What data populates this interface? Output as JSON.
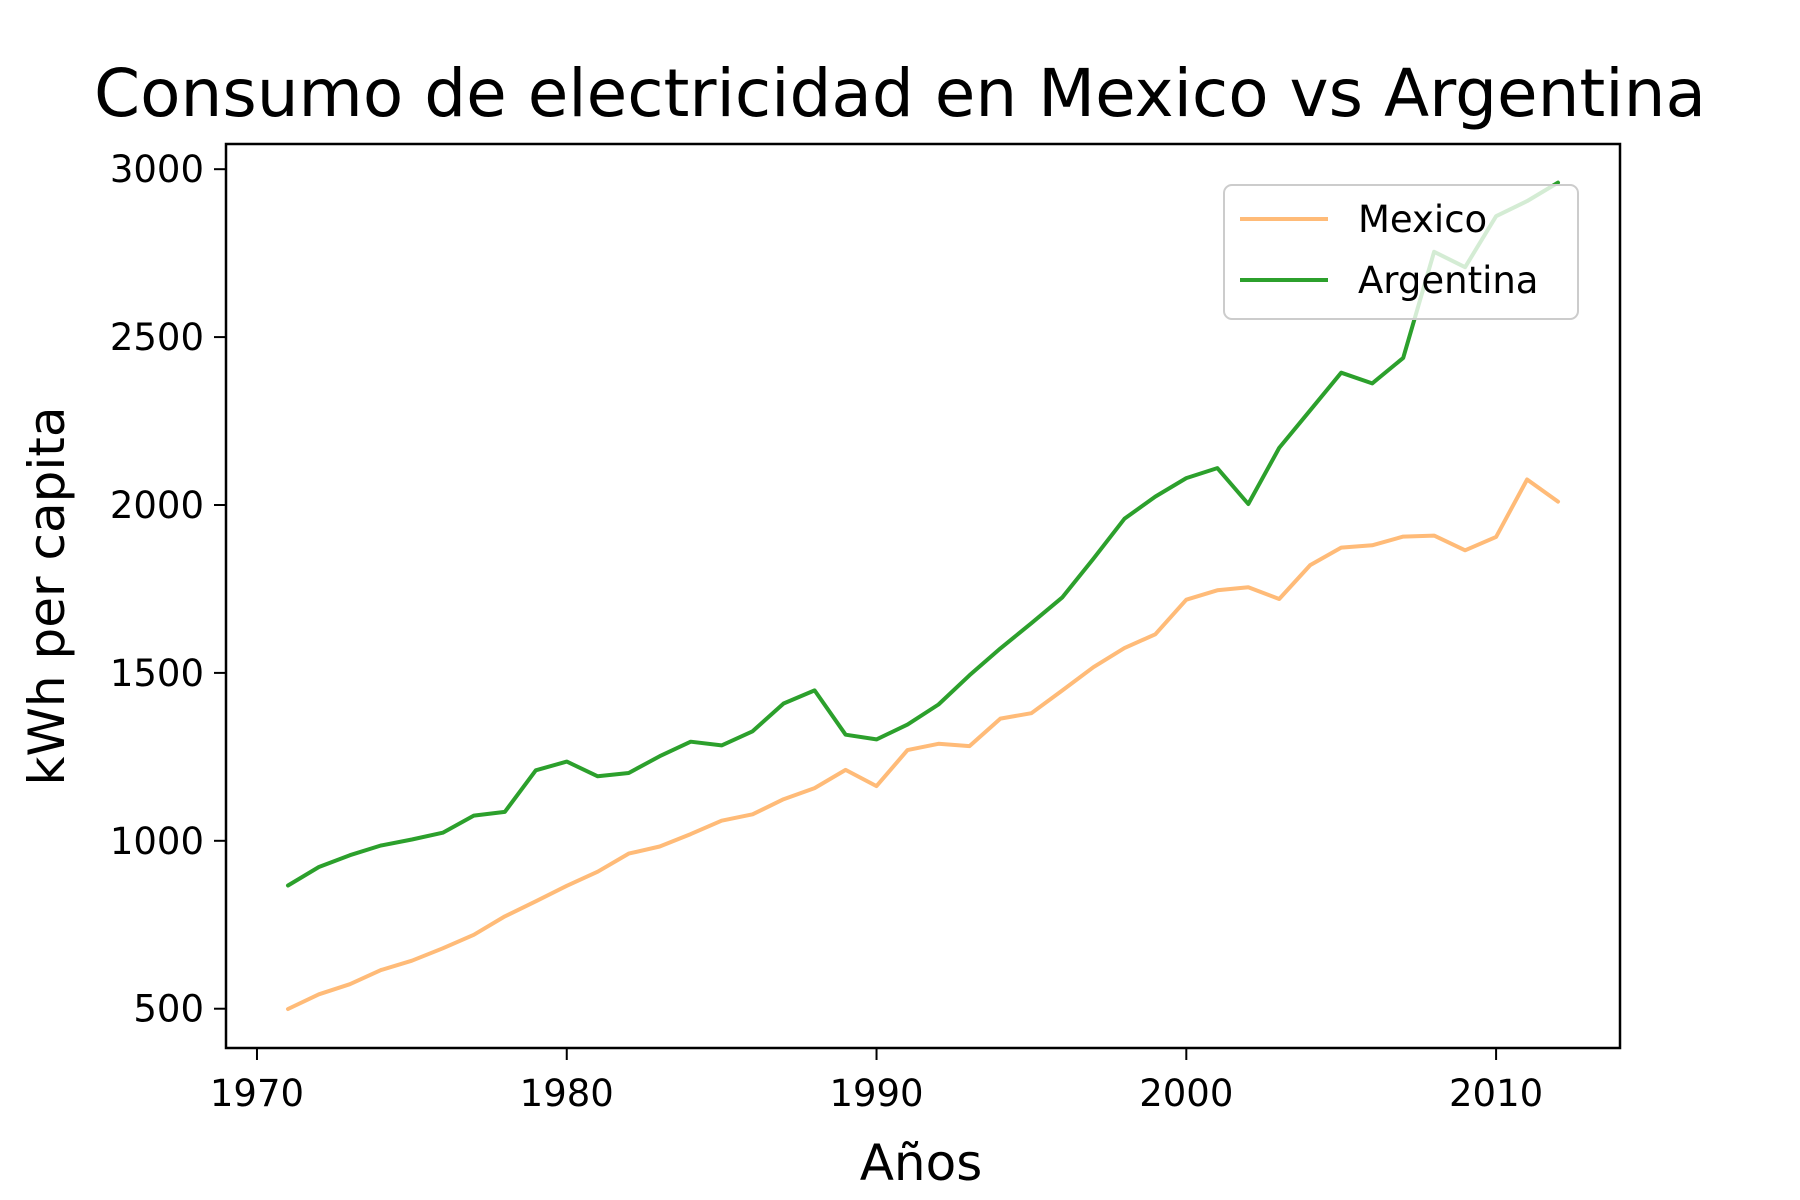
{
  "chart_data": {
    "type": "line",
    "title": "Consumo de electricidad en Mexico vs Argentina",
    "xlabel": "Años",
    "ylabel": "kWh per capita",
    "xlim": [
      1969,
      2014
    ],
    "ylim": [
      383,
      3075
    ],
    "xticks": [
      1970,
      1980,
      1990,
      2000,
      2010
    ],
    "yticks": [
      500,
      1000,
      1500,
      2000,
      2500,
      3000
    ],
    "grid": false,
    "legend_position": "top-right",
    "x": [
      1971,
      1972,
      1973,
      1974,
      1975,
      1976,
      1977,
      1978,
      1979,
      1980,
      1981,
      1982,
      1983,
      1984,
      1985,
      1986,
      1987,
      1988,
      1989,
      1990,
      1991,
      1992,
      1993,
      1994,
      1995,
      1996,
      1997,
      1998,
      1999,
      2000,
      2001,
      2002,
      2003,
      2004,
      2005,
      2006,
      2007,
      2008,
      2009,
      2010,
      2011,
      2012
    ],
    "series": [
      {
        "name": "Mexico",
        "color": "#ffbb78",
        "values": [
          499,
          543,
          573,
          615,
          643,
          680,
          720,
          775,
          820,
          866,
          908,
          962,
          983,
          1020,
          1060,
          1079,
          1124,
          1157,
          1211,
          1163,
          1270,
          1289,
          1282,
          1364,
          1380,
          1448,
          1517,
          1574,
          1615,
          1718,
          1746,
          1755,
          1720,
          1821,
          1873,
          1880,
          1906,
          1909,
          1865,
          1905,
          2076,
          2010
        ]
      },
      {
        "name": "Argentina",
        "color": "#2ca02c",
        "values": [
          867,
          922,
          957,
          986,
          1004,
          1024,
          1075,
          1086,
          1210,
          1236,
          1192,
          1202,
          1252,
          1295,
          1284,
          1326,
          1409,
          1448,
          1316,
          1302,
          1346,
          1406,
          1493,
          1573,
          1648,
          1725,
          1840,
          1959,
          2025,
          2080,
          2110,
          2003,
          2170,
          2282,
          2394,
          2362,
          2438,
          2754,
          2708,
          2860,
          2905,
          2960
        ]
      }
    ]
  }
}
